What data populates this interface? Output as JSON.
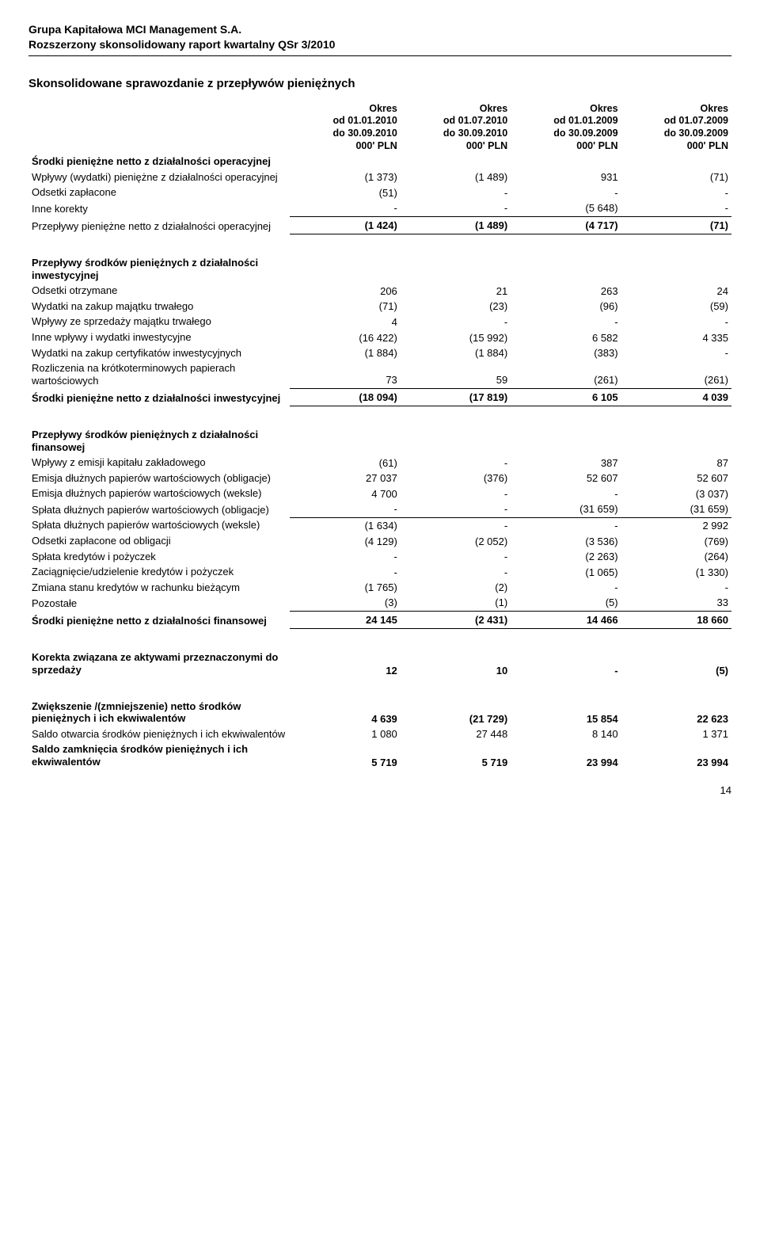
{
  "header": {
    "line1": "Grupa Kapitałowa MCI Management S.A.",
    "line2": "Rozszerzony skonsolidowany raport kwartalny QSr 3/2010"
  },
  "section_title": "Skonsolidowane sprawozdanie z przepływów pieniężnych",
  "columns": [
    "Okres\nod 01.01.2010\ndo 30.09.2010\n000' PLN",
    "Okres\nod 01.07.2010\ndo 30.09.2010\n000' PLN",
    "Okres\nod 01.01.2009\ndo 30.09.2009\n000' PLN",
    "Okres\nod 01.07.2009\ndo 30.09.2009\n000' PLN"
  ],
  "blocks": [
    {
      "heading": "Środki pieniężne netto z działalności operacyjnej",
      "rows": [
        {
          "label": "Wpływy (wydatki) pieniężne z działalności operacyjnej",
          "v": [
            "(1 373)",
            "(1 489)",
            "931",
            "(71)"
          ]
        },
        {
          "label": "Odsetki zapłacone",
          "v": [
            "(51)",
            "-",
            "-",
            "-"
          ]
        },
        {
          "label": "Inne korekty",
          "v": [
            "-",
            "-",
            "(5 648)",
            "-"
          ],
          "underline": true
        }
      ],
      "subtotal": {
        "label": "Przepływy pieniężne netto z działalności operacyjnej",
        "v": [
          "(1 424)",
          "(1 489)",
          "(4 717)",
          "(71)"
        ]
      }
    },
    {
      "heading": "Przepływy środków pieniężnych z działalności inwestycyjnej",
      "rows": [
        {
          "label": "Odsetki otrzymane",
          "v": [
            "206",
            "21",
            "263",
            "24"
          ]
        },
        {
          "label": "Wydatki na zakup majątku trwałego",
          "v": [
            "(71)",
            "(23)",
            "(96)",
            "(59)"
          ]
        },
        {
          "label": "Wpływy ze sprzedaży majątku trwałego",
          "v": [
            "4",
            "-",
            "-",
            "-"
          ]
        },
        {
          "label": "Inne wpływy i wydatki inwestycyjne",
          "v": [
            "(16 422)",
            "(15 992)",
            "6 582",
            "4 335"
          ]
        },
        {
          "label": "Wydatki na zakup certyfikatów inwestycyjnych",
          "v": [
            "(1 884)",
            "(1 884)",
            "(383)",
            "-"
          ]
        },
        {
          "label": "Rozliczenia na krótkoterminowych papierach wartościowych",
          "v": [
            "73",
            "59",
            "(261)",
            "(261)"
          ],
          "underline": true
        }
      ],
      "subtotal": {
        "label": "Środki pieniężne netto z działalności inwestycyjnej",
        "v": [
          "(18 094)",
          "(17 819)",
          "6 105",
          "4 039"
        ]
      }
    },
    {
      "heading": "Przepływy środków pieniężnych z działalności finansowej",
      "rows": [
        {
          "label": "Wpływy z emisji kapitału zakładowego",
          "v": [
            "(61)",
            "-",
            "387",
            "87"
          ]
        },
        {
          "label": "Emisja dłużnych papierów wartościowych (obligacje)",
          "v": [
            "27 037",
            "(376)",
            "52 607",
            "52 607"
          ]
        },
        {
          "label": "Emisja dłużnych papierów wartościowych (weksle)",
          "v": [
            "4 700",
            "-",
            "-",
            "(3 037)"
          ]
        },
        {
          "label": "Spłata dłużnych papierów wartościowych (obligacje)",
          "v": [
            "-",
            "-",
            "(31 659)",
            "(31 659)"
          ],
          "underline": true
        },
        {
          "label": "Spłata dłużnych papierów wartościowych (weksle)",
          "v": [
            "(1 634)",
            "-",
            "-",
            "2 992"
          ]
        },
        {
          "label": "Odsetki zapłacone od obligacji",
          "v": [
            "(4 129)",
            "(2 052)",
            "(3 536)",
            "(769)"
          ]
        },
        {
          "label": "Spłata kredytów i pożyczek",
          "v": [
            "-",
            "-",
            "(2 263)",
            "(264)"
          ]
        },
        {
          "label": "Zaciągnięcie/udzielenie kredytów i pożyczek",
          "v": [
            "-",
            "-",
            "(1 065)",
            "(1 330)"
          ]
        },
        {
          "label": "Zmiana stanu kredytów w rachunku bieżącym",
          "v": [
            "(1 765)",
            "(2)",
            "-",
            "-"
          ]
        },
        {
          "label": "Pozostałe",
          "v": [
            "(3)",
            "(1)",
            "(5)",
            "33"
          ],
          "underline": true
        }
      ],
      "subtotal": {
        "label": "Środki pieniężne netto z działalności finansowej",
        "v": [
          "24 145",
          "(2 431)",
          "14 466",
          "18 660"
        ]
      }
    }
  ],
  "footer_rows": [
    {
      "label": "Korekta związana ze aktywami przeznaczonymi do sprzedaży",
      "bold": true,
      "v": [
        "12",
        "10",
        "-",
        "(5)"
      ]
    },
    {
      "label": "Zwiększenie /(zmniejszenie) netto środków pieniężnych i ich ekwiwalentów",
      "bold": true,
      "v": [
        "4 639",
        "(21 729)",
        "15 854",
        "22 623"
      ]
    },
    {
      "label": "Saldo otwarcia środków pieniężnych i ich ekwiwalentów",
      "bold": false,
      "v": [
        "1 080",
        "27 448",
        "8 140",
        "1 371"
      ]
    },
    {
      "label": "Saldo zamknięcia środków pieniężnych i ich ekwiwalentów",
      "bold": true,
      "v": [
        "5 719",
        "5 719",
        "23 994",
        "23 994"
      ]
    }
  ],
  "page_number": "14"
}
